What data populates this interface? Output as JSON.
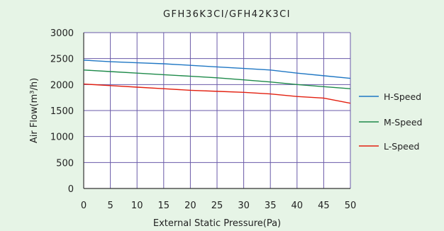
{
  "chart_data": {
    "type": "line",
    "title": "GFH36K3CI/GFH42K3CI",
    "xlabel": "External Static Pressure(Pa)",
    "ylabel": "Air Flow(m³/h)",
    "x": [
      0,
      5,
      10,
      15,
      20,
      25,
      30,
      35,
      40,
      45,
      50
    ],
    "xlim": [
      0,
      50
    ],
    "ylim": [
      0,
      3000
    ],
    "yticks": [
      0,
      500,
      1000,
      1500,
      2000,
      2500,
      3000
    ],
    "grid": true,
    "legend_position": "right",
    "series": [
      {
        "name": "H-Speed",
        "color": "#1f77c4",
        "values": [
          2470,
          2440,
          2420,
          2400,
          2370,
          2340,
          2310,
          2280,
          2220,
          2170,
          2120
        ]
      },
      {
        "name": "M-Speed",
        "color": "#1e8a4a",
        "values": [
          2280,
          2250,
          2220,
          2190,
          2160,
          2130,
          2090,
          2050,
          2000,
          1960,
          1920
        ]
      },
      {
        "name": "L-Speed",
        "color": "#e32010",
        "values": [
          2010,
          1980,
          1950,
          1920,
          1890,
          1870,
          1850,
          1820,
          1770,
          1740,
          1640
        ]
      }
    ],
    "colors": {
      "grid": "#6a5aa8",
      "axis": "#333333",
      "background": "#e6f4e6"
    }
  }
}
